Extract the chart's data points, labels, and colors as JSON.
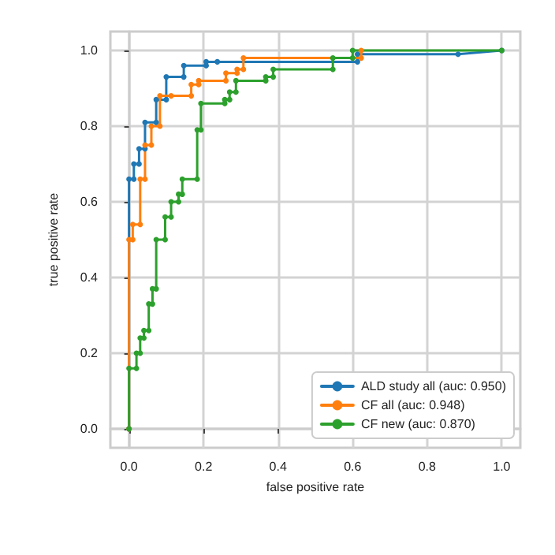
{
  "chart_data": {
    "type": "line",
    "xlabel": "false positive rate",
    "ylabel": "true positive rate",
    "xlim": [
      -0.05,
      1.05
    ],
    "ylim": [
      -0.05,
      1.05
    ],
    "xticks": [
      {
        "value": 0,
        "label": "0.0"
      },
      0.2,
      0.4,
      0.6,
      0.8,
      {
        "value": 1,
        "label": "1.0"
      }
    ],
    "yticks": [
      {
        "value": 0,
        "label": "0.0"
      },
      0.2,
      0.4,
      0.6,
      0.8,
      {
        "value": 1,
        "label": "1.0"
      }
    ],
    "grid": true,
    "legend": "bottom right",
    "marker": "circle",
    "line_style": "solid",
    "series": [
      {
        "name": "ALD study all (auc: 0.950)",
        "color": "#1f77b4",
        "x": [
          0,
          0,
          0.013,
          0.013,
          0.027,
          0.027,
          0.043,
          0.043,
          0.073,
          0.073,
          0.1,
          0.1,
          0.147,
          0.147,
          0.207,
          0.207,
          0.237,
          0.613,
          0.613,
          0.883,
          1
        ],
        "values": [
          0,
          0.66,
          0.66,
          0.7,
          0.7,
          0.74,
          0.74,
          0.81,
          0.81,
          0.87,
          0.87,
          0.93,
          0.93,
          0.96,
          0.96,
          0.97,
          0.97,
          0.97,
          0.99,
          0.99,
          1
        ]
      },
      {
        "name": "CF all (auc: 0.948)",
        "color": "#ff7f0e",
        "x": [
          0,
          0,
          0.01,
          0.01,
          0.03,
          0.03,
          0.043,
          0.043,
          0.06,
          0.06,
          0.083,
          0.083,
          0.113,
          0.167,
          0.167,
          0.187,
          0.187,
          0.26,
          0.26,
          0.29,
          0.29,
          0.307,
          0.307,
          0.623,
          0.623
        ],
        "values": [
          0,
          0.5,
          0.5,
          0.54,
          0.54,
          0.66,
          0.66,
          0.75,
          0.75,
          0.8,
          0.8,
          0.88,
          0.88,
          0.88,
          0.91,
          0.91,
          0.92,
          0.92,
          0.94,
          0.94,
          0.95,
          0.95,
          0.98,
          0.98,
          1
        ]
      },
      {
        "name": "CF new (auc: 0.870)",
        "color": "#2ca02c",
        "x": [
          0,
          0,
          0.02,
          0.02,
          0.03,
          0.03,
          0.04,
          0.04,
          0.053,
          0.053,
          0.063,
          0.063,
          0.073,
          0.073,
          0.097,
          0.097,
          0.113,
          0.113,
          0.133,
          0.133,
          0.143,
          0.143,
          0.183,
          0.183,
          0.193,
          0.193,
          0.257,
          0.257,
          0.27,
          0.27,
          0.287,
          0.287,
          0.367,
          0.367,
          0.387,
          0.387,
          0.547,
          0.547,
          0.6,
          0.6,
          1
        ],
        "values": [
          0,
          0.16,
          0.16,
          0.2,
          0.2,
          0.24,
          0.24,
          0.26,
          0.26,
          0.33,
          0.33,
          0.37,
          0.37,
          0.5,
          0.5,
          0.56,
          0.56,
          0.6,
          0.6,
          0.62,
          0.62,
          0.66,
          0.66,
          0.79,
          0.79,
          0.86,
          0.86,
          0.87,
          0.87,
          0.89,
          0.89,
          0.92,
          0.92,
          0.93,
          0.93,
          0.95,
          0.95,
          0.98,
          0.98,
          1,
          1
        ]
      }
    ]
  }
}
